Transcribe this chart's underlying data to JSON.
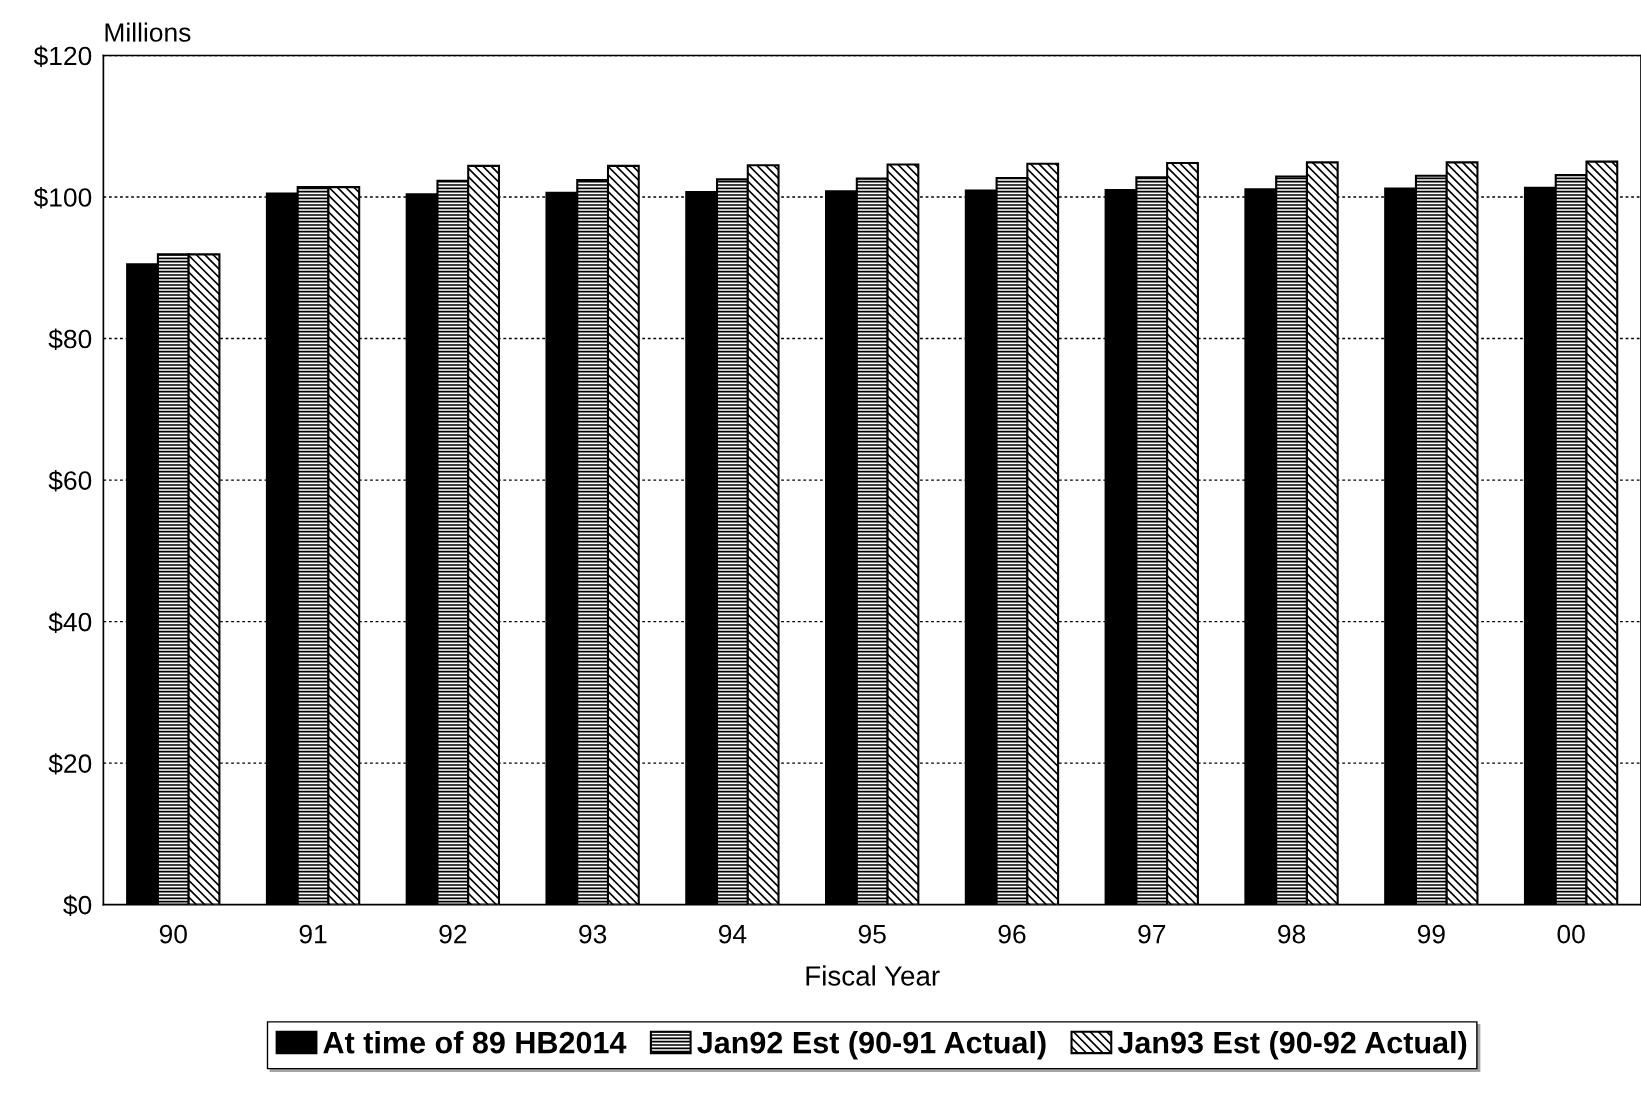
{
  "chart_data": {
    "type": "bar",
    "ylabel": "Millions",
    "xlabel": "Fiscal Year",
    "categories": [
      "90",
      "91",
      "92",
      "93",
      "94",
      "95",
      "96",
      "97",
      "98",
      "99",
      "00"
    ],
    "series": [
      {
        "name": "At time of 89 HB2014",
        "color": "#000000",
        "values": [
          90.5,
          100.5,
          100.4,
          100.6,
          100.7,
          100.8,
          100.9,
          101.0,
          101.1,
          101.2,
          101.3
        ]
      },
      {
        "name": "Jan92 Est (90-91 Actual)",
        "color": "#000000",
        "values": [
          91.9,
          101.4,
          102.3,
          102.4,
          102.5,
          102.6,
          102.7,
          102.8,
          102.9,
          103.0,
          103.1
        ]
      },
      {
        "name": "Jan93 Est (90-92 Actual)",
        "color": "#000000",
        "values": [
          91.9,
          101.4,
          104.4,
          104.4,
          104.5,
          104.6,
          104.7,
          104.8,
          104.9,
          104.9,
          105.0
        ]
      }
    ],
    "ylim": [
      0,
      120
    ],
    "yticks": [
      {
        "value": 0,
        "label": "$0"
      },
      {
        "value": 20,
        "label": "$20"
      },
      {
        "value": 40,
        "label": "$40"
      },
      {
        "value": 60,
        "label": "$60"
      },
      {
        "value": 80,
        "label": "$80"
      },
      {
        "value": 100,
        "label": "$100"
      },
      {
        "value": 120,
        "label": "$120"
      }
    ],
    "grid": "y",
    "legend": "bottom"
  }
}
